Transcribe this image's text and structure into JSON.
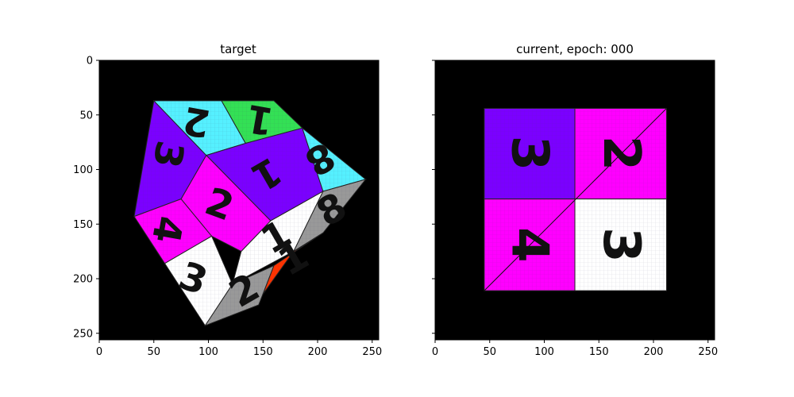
{
  "chart_data": [
    {
      "type": "image",
      "title": "target",
      "xlim": [
        0,
        256
      ],
      "ylim": [
        256,
        0
      ],
      "xticks": [
        0,
        50,
        100,
        150,
        200,
        250
      ],
      "yticks": [
        0,
        50,
        100,
        150,
        200,
        250
      ],
      "xtick_labels": [
        "0",
        "50",
        "100",
        "150",
        "200",
        "250"
      ],
      "ytick_labels": [
        "0",
        "50",
        "100",
        "150",
        "200",
        "250"
      ],
      "background_color": "#000000",
      "faces": [
        {
          "color": "#7b00ff",
          "points": [
            [
              50,
              37
            ],
            [
              98,
              87
            ],
            [
              75,
              127
            ],
            [
              32,
              143
            ]
          ],
          "digit": "3",
          "digit_pos": [
            63,
            86
          ],
          "rotation": 100
        },
        {
          "color": "#ff00ff",
          "points": [
            [
              32,
              143
            ],
            [
              75,
              127
            ],
            [
              103,
              161
            ],
            [
              60,
              186
            ]
          ],
          "digit": "4",
          "digit_pos": [
            62,
            155
          ],
          "rotation": 100
        },
        {
          "color": "#55f0ff",
          "points": [
            [
              50,
              37
            ],
            [
              112,
              37
            ],
            [
              134,
              76
            ],
            [
              98,
              87
            ]
          ],
          "digit": "2",
          "digit_pos": [
            89,
            56
          ],
          "rotation": 190
        },
        {
          "color": "#33e055",
          "points": [
            [
              112,
              37
            ],
            [
              160,
              37
            ],
            [
              186,
              62
            ],
            [
              134,
              76
            ]
          ],
          "digit": "1",
          "digit_pos": [
            147,
            54
          ],
          "rotation": 190
        },
        {
          "color": "#7b00ff",
          "points": [
            [
              98,
              87
            ],
            [
              134,
              76
            ],
            [
              186,
              62
            ],
            [
              205,
              120
            ],
            [
              157,
              147
            ]
          ],
          "digit": "1",
          "digit_pos": [
            153,
            104
          ],
          "rotation": 150
        },
        {
          "color": "#55f0ff",
          "points": [
            [
              186,
              62
            ],
            [
              244,
              109
            ],
            [
              205,
              120
            ]
          ],
          "digit": "8",
          "digit_pos": [
            202,
            90
          ],
          "rotation": 150
        },
        {
          "color": "#ff00ff",
          "points": [
            [
              75,
              127
            ],
            [
              98,
              87
            ],
            [
              157,
              147
            ],
            [
              130,
              175
            ],
            [
              103,
              161
            ]
          ],
          "digit": "2",
          "digit_pos": [
            110,
            132
          ],
          "rotation": 20
        },
        {
          "color": "#ffffff",
          "points": [
            [
              60,
              186
            ],
            [
              103,
              161
            ],
            [
              122,
              205
            ],
            [
              97,
              243
            ]
          ],
          "digit": "3",
          "digit_pos": [
            86,
            200
          ],
          "rotation": 20
        },
        {
          "color": "#ffffff",
          "points": [
            [
              157,
              147
            ],
            [
              205,
              120
            ],
            [
              178,
              175
            ],
            [
              122,
              205
            ],
            [
              130,
              175
            ]
          ],
          "digit": "1",
          "digit_pos": [
            162,
            162
          ],
          "rotation": -30
        },
        {
          "color": "#999999",
          "points": [
            [
              205,
              120
            ],
            [
              244,
              109
            ],
            [
              205,
              158
            ],
            [
              178,
              175
            ]
          ],
          "digit": "8",
          "digit_pos": [
            213,
            137
          ],
          "rotation": -30
        },
        {
          "color": "#999999",
          "points": [
            [
              122,
              205
            ],
            [
              160,
              188
            ],
            [
              146,
              224
            ],
            [
              97,
              243
            ]
          ],
          "digit": "2",
          "digit_pos": [
            133,
            211
          ],
          "rotation": -30
        },
        {
          "color": "#ff3300",
          "points": [
            [
              160,
              188
            ],
            [
              205,
              158
            ],
            [
              178,
              175
            ],
            [
              150,
              214
            ]
          ],
          "digit": "1",
          "digit_pos": [
            178,
            182
          ],
          "rotation": -30
        }
      ]
    },
    {
      "type": "image",
      "title": "current, epoch: 000",
      "xlim": [
        0,
        256
      ],
      "ylim": [
        256,
        0
      ],
      "xticks": [
        0,
        50,
        100,
        150,
        200,
        250
      ],
      "yticks": [
        0,
        50,
        100,
        150,
        200,
        250
      ],
      "xtick_labels": [
        "0",
        "50",
        "100",
        "150",
        "200",
        "250"
      ],
      "ytick_labels": [
        "",
        "",
        "",
        "",
        "",
        ""
      ],
      "background_color": "#000000",
      "faces": [
        {
          "color": "#7b00ff",
          "points": [
            [
              45,
              44
            ],
            [
              128,
              44
            ],
            [
              128,
              127
            ],
            [
              45,
              127
            ]
          ],
          "digit": "3",
          "digit_pos": [
            86,
            85
          ],
          "rotation": 90
        },
        {
          "color": "#ff00ff",
          "points": [
            [
              128,
              44
            ],
            [
              212,
              44
            ],
            [
              212,
              127
            ],
            [
              128,
              127
            ]
          ],
          "digit": "2",
          "digit_pos": [
            170,
            85
          ],
          "rotation": 90
        },
        {
          "color": "#ff00ff",
          "points": [
            [
              45,
              127
            ],
            [
              128,
              127
            ],
            [
              128,
              211
            ],
            [
              45,
              211
            ]
          ],
          "digit": "4",
          "digit_pos": [
            86,
            169
          ],
          "rotation": 90
        },
        {
          "color": "#ffffff",
          "points": [
            [
              128,
              127
            ],
            [
              212,
              127
            ],
            [
              212,
              211
            ],
            [
              128,
              211
            ]
          ],
          "digit": "3",
          "digit_pos": [
            170,
            169
          ],
          "rotation": 90
        }
      ],
      "diagonal": [
        [
          45,
          211
        ],
        [
          212,
          44
        ]
      ]
    }
  ]
}
